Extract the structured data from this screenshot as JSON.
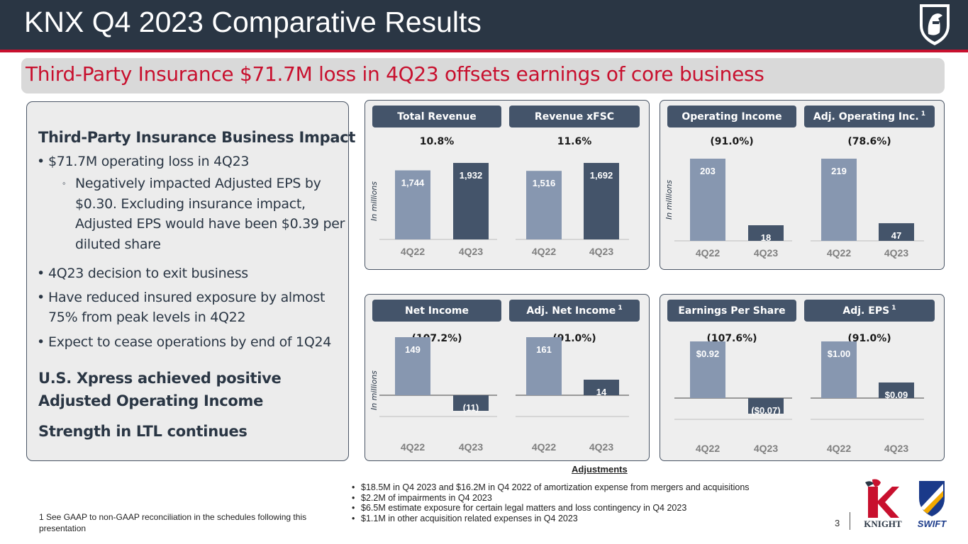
{
  "header": {
    "title": "KNX Q4 2023 Comparative Results",
    "subtitle": "Third-Party Insurance $71.7M loss in 4Q23 offsets earnings of core business"
  },
  "left_panel": {
    "heading": "Third-Party Insurance Business Impact",
    "bullets": [
      "$71.7M operating loss in 4Q23",
      "4Q23 decision to exit business",
      "Have reduced insured exposure by almost 75% from peak levels in 4Q22",
      "Expect to cease operations by end of 1Q24"
    ],
    "sub_bullet": "Negatively impacted Adjusted EPS by $0.30.  Excluding insurance impact, Adjusted EPS would have been $0.39 per diluted share",
    "headings_bottom": [
      "U.S. Xpress achieved positive Adjusted Operating Income",
      "Strength in LTL continues"
    ]
  },
  "chart_data": [
    {
      "type": "bar",
      "title": "Total Revenue",
      "change": "10.8%",
      "ylabel": "In millions",
      "categories": [
        "4Q22",
        "4Q23"
      ],
      "values": [
        1744,
        1932
      ],
      "labels": [
        "1,744",
        "1,932"
      ]
    },
    {
      "type": "bar",
      "title": "Revenue xFSC",
      "change": "11.6%",
      "categories": [
        "4Q22",
        "4Q23"
      ],
      "values": [
        1516,
        1692
      ],
      "labels": [
        "1,516",
        "1,692"
      ]
    },
    {
      "type": "bar",
      "title": "Operating Income",
      "change": "(91.0%)",
      "ylabel": "In millions",
      "categories": [
        "4Q22",
        "4Q23"
      ],
      "values": [
        203,
        18
      ],
      "labels": [
        "203",
        "18"
      ]
    },
    {
      "type": "bar",
      "title": "Adj. Operating Inc.",
      "footnote": "1",
      "change": "(78.6%)",
      "categories": [
        "4Q22",
        "4Q23"
      ],
      "values": [
        219,
        47
      ],
      "labels": [
        "219",
        "47"
      ]
    },
    {
      "type": "bar",
      "title": "Net Income",
      "change": "(107.2%)",
      "ylabel": "In millions",
      "categories": [
        "4Q22",
        "4Q23"
      ],
      "values": [
        149,
        -11
      ],
      "labels": [
        "149",
        "(11)"
      ]
    },
    {
      "type": "bar",
      "title": "Adj. Net Income",
      "footnote": "1",
      "change": "(91.0%)",
      "categories": [
        "4Q22",
        "4Q23"
      ],
      "values": [
        161,
        14
      ],
      "labels": [
        "161",
        "14"
      ]
    },
    {
      "type": "bar",
      "title": "Earnings Per Share",
      "change": "(107.6%)",
      "categories": [
        "4Q22",
        "4Q23"
      ],
      "values": [
        0.92,
        -0.07
      ],
      "labels": [
        "$0.92",
        "($0.07)"
      ]
    },
    {
      "type": "bar",
      "title": "Adj. EPS",
      "footnote": "1",
      "change": "(91.0%)",
      "categories": [
        "4Q22",
        "4Q23"
      ],
      "values": [
        1.0,
        0.09
      ],
      "labels": [
        "$1.00",
        "$0.09"
      ]
    }
  ],
  "adjustments": {
    "title": "Adjustments",
    "items": [
      "$18.5M in Q4 2023 and $16.2M in Q4 2022 of amortization expense from mergers and acquisitions",
      "$2.2M of impairments in Q4 2023",
      "$6.5M estimate exposure for certain legal matters and loss contingency in Q4 2023",
      "$1.1M in other acquisition related expenses in Q4 2023"
    ]
  },
  "footer": {
    "footnote": "1   See GAAP to non-GAAP reconciliation in the schedules following this presentation",
    "page_number": "3",
    "knight_logo_text": "KNIGHT",
    "swift_logo_text": "SWIFT"
  },
  "colors": {
    "header_bg": "#2a3644",
    "accent_red": "#c8102e",
    "bar_prior": "#8797b0",
    "bar_current": "#44546a",
    "label_bg": "#44546a"
  }
}
